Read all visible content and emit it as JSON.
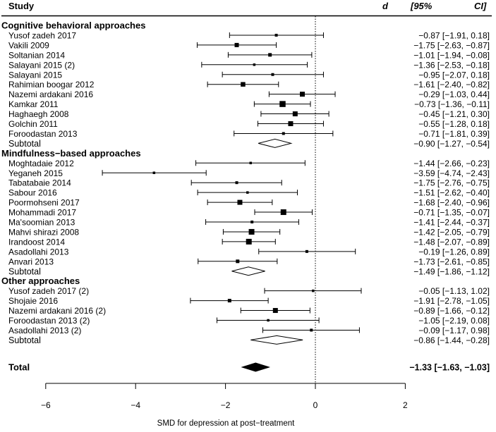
{
  "chart_data": {
    "type": "forest",
    "header": {
      "study": "Study",
      "d": "d",
      "ci": "[95%",
      "ci2": "CI]"
    },
    "xlabel": "SMD for depression at post−treatment",
    "xlim": [
      -6,
      2
    ],
    "xticks": [
      -6,
      -4,
      -2,
      0,
      2
    ],
    "xtick_labels": [
      "−6",
      "−4",
      "−2",
      "0",
      "2"
    ],
    "reference_line": 0,
    "groups": [
      {
        "name": "Cognitive behavioral approaches",
        "studies": [
          {
            "study": "Yusof zadeh 2017",
            "d": -0.87,
            "lo": -1.91,
            "hi": 0.18,
            "weight": 2,
            "label": "−0.87 [−1.91,  0.18]"
          },
          {
            "study": "Vakili 2009",
            "d": -1.75,
            "lo": -2.63,
            "hi": -0.87,
            "weight": 4,
            "label": "−1.75 [−2.63, −0.87]"
          },
          {
            "study": "Soltanian 2014",
            "d": -1.01,
            "lo": -1.94,
            "hi": -0.08,
            "weight": 3,
            "label": "−1.01 [−1.94, −0.08]"
          },
          {
            "study": "Salayani 2015 (2)",
            "d": -1.36,
            "lo": -2.53,
            "hi": -0.18,
            "weight": 1.5,
            "label": "−1.36 [−2.53, −0.18]"
          },
          {
            "study": "Salayani 2015",
            "d": -0.95,
            "lo": -2.07,
            "hi": 0.18,
            "weight": 2,
            "label": "−0.95 [−2.07,  0.18]"
          },
          {
            "study": "Rahimian boogar 2012",
            "d": -1.61,
            "lo": -2.4,
            "hi": -0.82,
            "weight": 4.5,
            "label": "−1.61 [−2.40, −0.82]"
          },
          {
            "study": "Nazemi ardakani 2016",
            "d": -0.29,
            "lo": -1.03,
            "hi": 0.44,
            "weight": 5,
            "label": "−0.29 [−1.03,  0.44]"
          },
          {
            "study": "Kamkar 2011",
            "d": -0.73,
            "lo": -1.36,
            "hi": -0.11,
            "weight": 6.5,
            "label": "−0.73 [−1.36, −0.11]"
          },
          {
            "study": "Haghaegh 2008",
            "d": -0.45,
            "lo": -1.21,
            "hi": 0.3,
            "weight": 5,
            "label": "−0.45 [−1.21,  0.30]"
          },
          {
            "study": "Golchin 2011",
            "d": -0.55,
            "lo": -1.28,
            "hi": 0.18,
            "weight": 5,
            "label": "−0.55 [−1.28,  0.18]"
          },
          {
            "study": "Foroodastan 2013",
            "d": -0.71,
            "lo": -1.81,
            "hi": 0.39,
            "weight": 2,
            "label": "−0.71 [−1.81,  0.39]"
          }
        ],
        "subtotal": {
          "label_text": "Subtotal",
          "d": -0.9,
          "lo": -1.27,
          "hi": -0.54,
          "label": "−0.90 [−1.27, −0.54]"
        }
      },
      {
        "name": "Mindfulness−based approaches",
        "studies": [
          {
            "study": "Moghtadaie 2012",
            "d": -1.44,
            "lo": -2.66,
            "hi": -0.23,
            "weight": 1.5,
            "label": "−1.44 [−2.66, −0.23]"
          },
          {
            "study": "Yeganeh 2015",
            "d": -3.59,
            "lo": -4.74,
            "hi": -2.43,
            "weight": 1.5,
            "label": "−3.59 [−4.74, −2.43]"
          },
          {
            "study": "Tabatabaie 2014",
            "d": -1.75,
            "lo": -2.76,
            "hi": -0.75,
            "weight": 2,
            "label": "−1.75 [−2.76, −0.75]"
          },
          {
            "study": "Sabour 2016",
            "d": -1.51,
            "lo": -2.62,
            "hi": -0.4,
            "weight": 1.5,
            "label": "−1.51 [−2.62, −0.40]"
          },
          {
            "study": "Poormohseni 2017",
            "d": -1.68,
            "lo": -2.4,
            "hi": -0.96,
            "weight": 5,
            "label": "−1.68 [−2.40, −0.96]"
          },
          {
            "study": "Mohammadi 2017",
            "d": -0.71,
            "lo": -1.35,
            "hi": -0.07,
            "weight": 6,
            "label": "−0.71 [−1.35, −0.07]"
          },
          {
            "study": "Ma'soomian 2013",
            "d": -1.41,
            "lo": -2.44,
            "hi": -0.37,
            "weight": 2,
            "label": "−1.41 [−2.44, −0.37]"
          },
          {
            "study": "Mahvi shirazi 2008",
            "d": -1.42,
            "lo": -2.05,
            "hi": -0.79,
            "weight": 6,
            "label": "−1.42 [−2.05, −0.79]"
          },
          {
            "study": "Irandoost 2014",
            "d": -1.48,
            "lo": -2.07,
            "hi": -0.89,
            "weight": 6,
            "label": "−1.48 [−2.07, −0.89]"
          },
          {
            "study": "Asadollahi 2013",
            "d": -0.19,
            "lo": -1.26,
            "hi": 0.89,
            "weight": 2,
            "label": "−0.19 [−1.26,  0.89]"
          },
          {
            "study": "Anvari 2013",
            "d": -1.73,
            "lo": -2.61,
            "hi": -0.85,
            "weight": 3,
            "label": "−1.73 [−2.61, −0.85]"
          }
        ],
        "subtotal": {
          "label_text": "Subtotal",
          "d": -1.49,
          "lo": -1.86,
          "hi": -1.12,
          "label": "−1.49 [−1.86, −1.12]"
        }
      },
      {
        "name": "Other approaches",
        "studies": [
          {
            "study": "Yusof zadeh 2017 (2)",
            "d": -0.05,
            "lo": -1.13,
            "hi": 1.02,
            "weight": 1.5,
            "label": "−0.05 [−1.13,  1.02]"
          },
          {
            "study": "Shojaie 2016",
            "d": -1.91,
            "lo": -2.78,
            "hi": -1.05,
            "weight": 3,
            "label": "−1.91 [−2.78, −1.05]"
          },
          {
            "study": "Nazemi ardakani 2016 (2)",
            "d": -0.89,
            "lo": -1.66,
            "hi": -0.12,
            "weight": 5,
            "label": "−0.89 [−1.66, −0.12]"
          },
          {
            "study": "Foroodastan 2013 (2)",
            "d": -1.05,
            "lo": -2.19,
            "hi": 0.08,
            "weight": 1.5,
            "label": "−1.05 [−2.19,  0.08]"
          },
          {
            "study": "Asadollahi 2013 (2)",
            "d": -0.09,
            "lo": -1.17,
            "hi": 0.98,
            "weight": 2,
            "label": "−0.09 [−1.17,  0.98]"
          }
        ],
        "subtotal": {
          "label_text": "Subtotal",
          "d": -0.86,
          "lo": -1.44,
          "hi": -0.28,
          "label": "−0.86 [−1.44, −0.28]"
        }
      }
    ],
    "total": {
      "label_text": "Total",
      "d": -1.33,
      "lo": -1.63,
      "hi": -1.03,
      "label": "−1.33 [−1.63, −1.03]"
    }
  }
}
